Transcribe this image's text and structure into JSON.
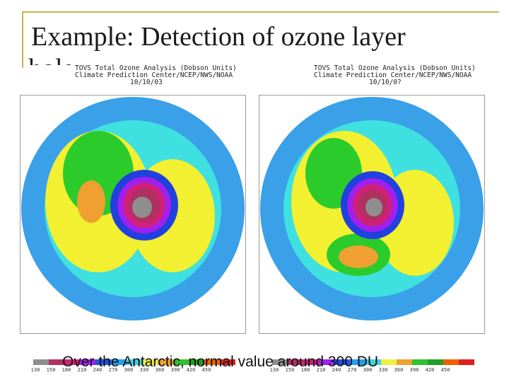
{
  "slide": {
    "title": "Example: Detection of ozone layer",
    "title_overflow": "hole",
    "caption": "Over the Antarctic, normal value around 300 DU",
    "accent_color": "#c9b34b"
  },
  "maps": [
    {
      "header_line1": "TOVS Total Ozone Analysis (Dobson Units)",
      "header_line2": "Climate Prediction Center/NCEP/NWS/NOAA",
      "header_line3": "10/10/03"
    },
    {
      "header_line1": "TOVS Total Ozone Analysis (Dobson Units)",
      "header_line2": "Climate Prediction Center/NCEP/NWS/NOAA",
      "header_line3": "10/10/0?"
    }
  ],
  "colorbar": {
    "ticks": [
      "130",
      "150",
      "180",
      "210",
      "240",
      "270",
      "300",
      "330",
      "360",
      "390",
      "420",
      "450"
    ],
    "colors": [
      "#8e8e8e",
      "#b03060",
      "#d0207a",
      "#a020f0",
      "#2050e0",
      "#20a0f0",
      "#40d0e0",
      "#f0f040",
      "#f0a030",
      "#30c030",
      "#20a020",
      "#f06000",
      "#e02020"
    ]
  }
}
